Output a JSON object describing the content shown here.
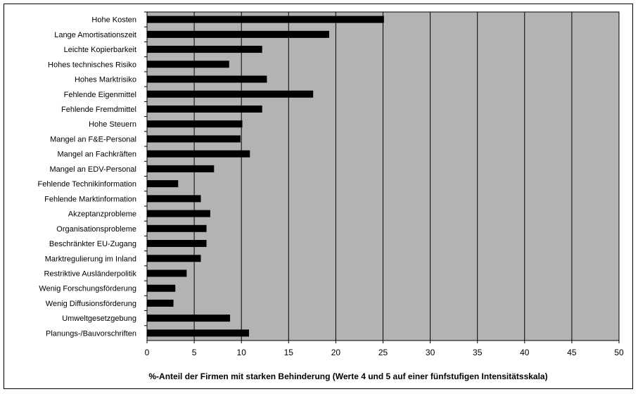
{
  "chart_data": {
    "type": "bar",
    "orientation": "horizontal",
    "categories": [
      "Hohe Kosten",
      "Lange Amortisationszeit",
      "Leichte Kopierbarkeit",
      "Hohes technisches Risiko",
      "Hohes Marktrisiko",
      "Fehlende Eigenmittel",
      "Fehlende Fremdmittel",
      "Hohe Steuern",
      "Mangel an F&E-Personal",
      "Mangel an Fachkräften",
      "Mangel an EDV-Personal",
      "Fehlende Technikinformation",
      "Fehlende Marktinformation",
      "Akzeptanzprobleme",
      "Organisationsprobleme",
      "Beschränkter EU-Zugang",
      "Marktregulierung im Inland",
      "Restriktive Ausländerpolitik",
      "Wenig Forschungsförderung",
      "Wenig Diffusionsförderung",
      "Umweltgesetzgebung",
      "Planungs-/Bauvorschriften"
    ],
    "values": [
      25.1,
      19.3,
      12.2,
      8.7,
      12.7,
      17.6,
      12.2,
      10.1,
      9.9,
      10.9,
      7.1,
      3.3,
      5.7,
      6.7,
      6.3,
      6.3,
      5.7,
      4.2,
      3.0,
      2.8,
      8.8,
      10.8
    ],
    "xlim": [
      0,
      50
    ],
    "xticks": [
      "0",
      "5",
      "10",
      "15",
      "20",
      "25",
      "30",
      "35",
      "40",
      "45",
      "50"
    ],
    "xlabel": "%-Anteil der Firmen mit starken Behinderung (Werte 4 und 5 auf einer fünfstufigen Intensitätsskala)",
    "grid": true,
    "colors": {
      "plot_bg": "#b3b3b3",
      "bar": "#000000",
      "grid": "#000000"
    }
  }
}
